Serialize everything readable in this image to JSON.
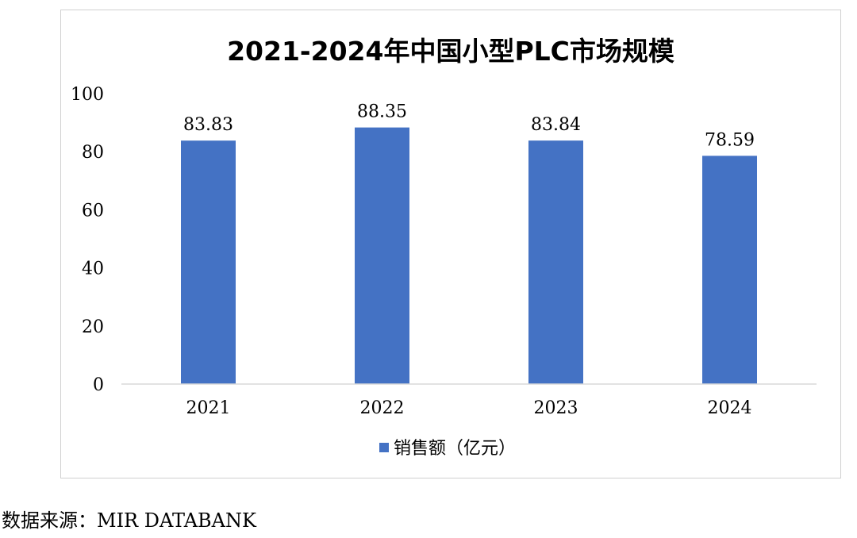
{
  "chart_data": {
    "type": "bar",
    "title": "2021-2024年中国小型PLC市场规模",
    "categories": [
      "2021",
      "2022",
      "2023",
      "2024"
    ],
    "series": [
      {
        "name": "销售额（亿元）",
        "values": [
          83.83,
          88.35,
          83.84,
          78.59
        ]
      }
    ],
    "data_labels": [
      "83.83",
      "88.35",
      "83.84",
      "78.59"
    ],
    "y_ticks": [
      "0",
      "20",
      "40",
      "60",
      "80",
      "100"
    ],
    "ylim": [
      0,
      100
    ],
    "xlabel": "",
    "ylabel": "",
    "grid": false,
    "legend": "bottom-center",
    "colors": {
      "bar": "#4472C4",
      "axis": "#d9d9d9",
      "frame": "#d0d0d0"
    }
  },
  "source": "数据来源：MIR DATABANK"
}
